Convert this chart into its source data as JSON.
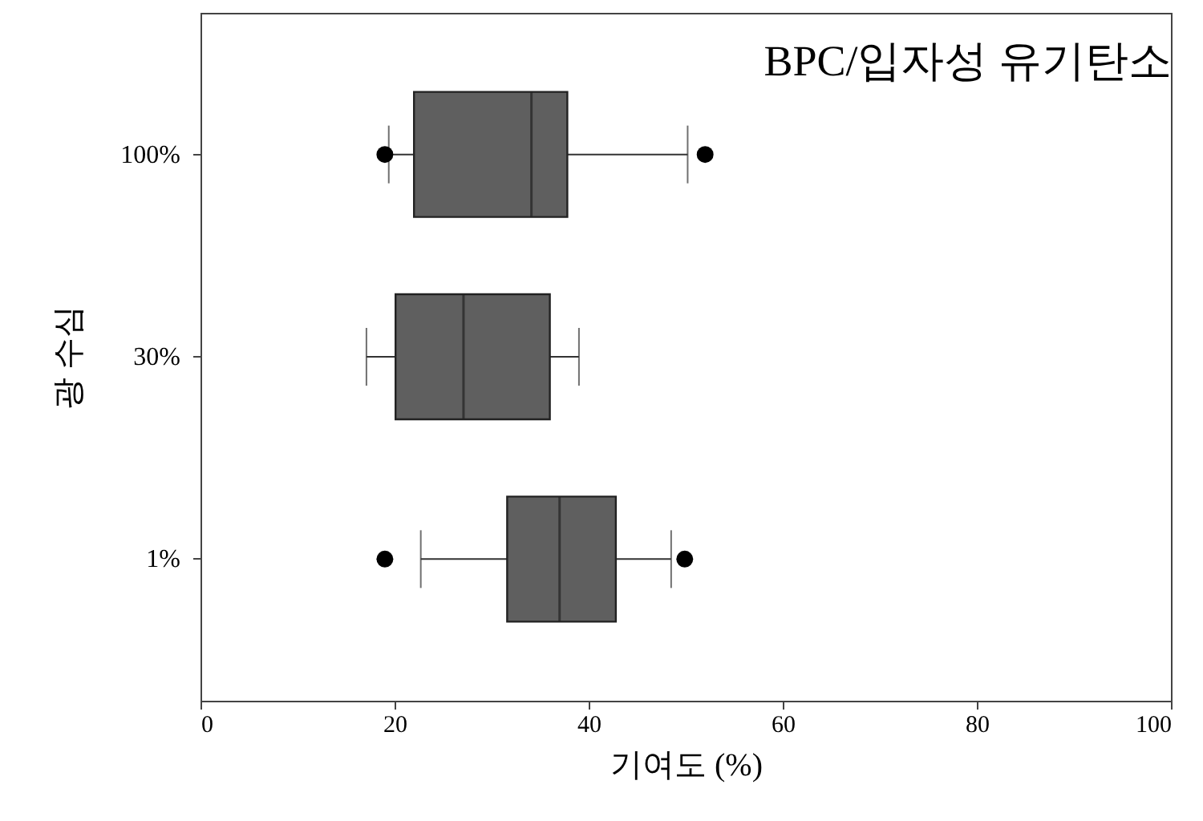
{
  "chart_data": {
    "type": "box",
    "title": "BPC/입자성 유기탄소",
    "xlabel": "기여도 (%)",
    "ylabel": "광 수심",
    "orientation": "horizontal",
    "categories": [
      "100%",
      "30%",
      "1%"
    ],
    "boxes": [
      {
        "low": 19.4,
        "q1": 22.0,
        "median": 34.1,
        "q3": 37.8,
        "high": 50.2,
        "outliers": [
          19.0,
          52.0
        ]
      },
      {
        "low": 17.1,
        "q1": 20.1,
        "median": 27.1,
        "q3": 36.0,
        "high": 39.0
      },
      {
        "low": 22.7,
        "q1": 31.6,
        "median": 37.0,
        "q3": 42.8,
        "high": 48.5,
        "outliers": [
          19.0,
          49.9
        ]
      }
    ],
    "color": "#5f5f5f",
    "xlim": [
      0,
      100
    ],
    "xticks": [
      0,
      20,
      40,
      60,
      80,
      100
    ]
  }
}
